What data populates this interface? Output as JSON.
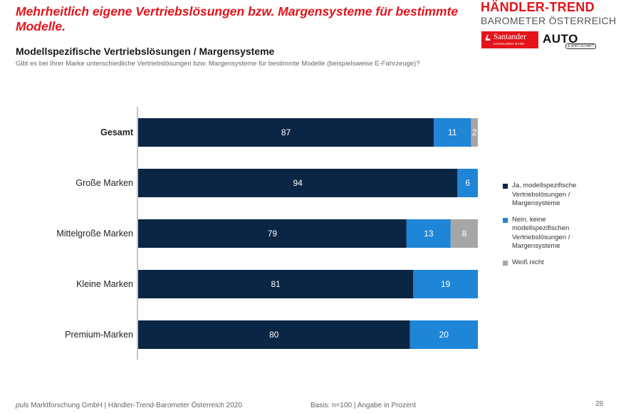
{
  "header": {
    "headline": "Mehrheitlich eigene Vertriebslösungen bzw. Margensysteme für bestimmte Modelle.",
    "brand_title": "HÄNDLER-TREND",
    "brand_subtitle": "BAROMETER ÖSTERREICH",
    "santander_name": "Santander",
    "santander_tag": "CONSUMER BANK",
    "auto_word": "AUTO",
    "auto_sub": "& WIRTSCHAFT"
  },
  "chart_data": {
    "type": "bar",
    "orientation": "horizontal",
    "stacked": true,
    "title": "Modellspezifische Vertriebslösungen / Margensysteme",
    "subtitle": "Gibt es bei Ihrer Marke unterschiedliche Vertriebslösungen bzw. Margensysteme für bestimmte Modelle (beispielsweise E-Fahrzeuge)?",
    "categories": [
      "Gesamt",
      "Große Marken",
      "Mittelgroße Marken",
      "Kleine Marken",
      "Premium-Marken"
    ],
    "category_bold": [
      true,
      false,
      false,
      false,
      false
    ],
    "series": [
      {
        "name": "Ja, modellspezifische Vertriebslösungen / Margensysteme",
        "values": [
          87,
          94,
          79,
          81,
          80
        ],
        "color": "#0b2545",
        "label_color": "#ffffff"
      },
      {
        "name": "Nein, keine modellspezifischen Vertriebslösungen / Margensysteme",
        "values": [
          11,
          6,
          13,
          19,
          20
        ],
        "color": "#1f85d6",
        "label_color": "#ffffff"
      },
      {
        "name": "Weiß nicht",
        "values": [
          2,
          0,
          8,
          0,
          0
        ],
        "color": "#a6a6a6",
        "label_color": "#ffffff"
      }
    ],
    "xlim": [
      0,
      100
    ],
    "grid": false,
    "legend_position": "right"
  },
  "legend_lines": [
    [
      "Ja, modellspezifische",
      "Vertriebslösungen /",
      "Margensysteme"
    ],
    [
      "Nein, keine",
      "modellspezifischen",
      "Vertriebslösungen /",
      "Margensysteme"
    ],
    [
      "Weiß nicht"
    ]
  ],
  "footer": {
    "company_italic": "puls",
    "company_rest": " Marktforschung GmbH | Händler-Trend-Barometer Österreich 2020",
    "basis": "Basis: n=100 | Angabe in Prozent",
    "page": "28"
  }
}
